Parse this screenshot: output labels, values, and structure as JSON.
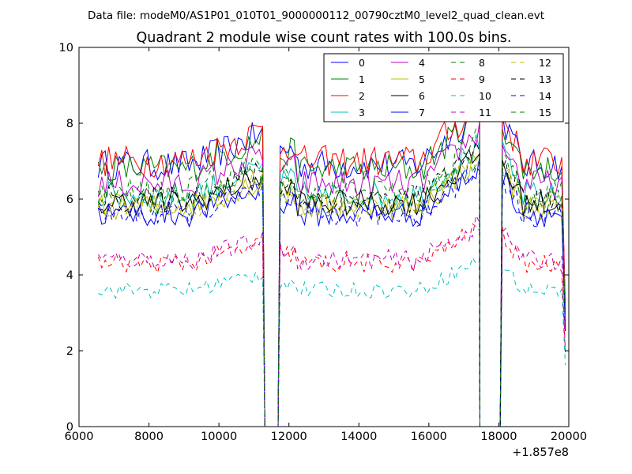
{
  "figure": {
    "suptitle": "Data file: modeM0/AS1P01_010T01_9000000112_00790cztM0_level2_quad_clean.evt"
  },
  "chart_data": {
    "type": "line",
    "title": "Quadrant 2 module wise count rates with 100.0s bins.",
    "xlabel": "",
    "ylabel": "",
    "x_offset_label": "+1.857e8",
    "xlim": [
      6000,
      20000
    ],
    "ylim": [
      0,
      10
    ],
    "x_ticks": [
      6000,
      8000,
      10000,
      12000,
      14000,
      16000,
      18000,
      20000
    ],
    "y_ticks": [
      0,
      2,
      4,
      6,
      8,
      10
    ],
    "grid": false,
    "legend_position": "top-right",
    "legend_columns": 4,
    "bin_seconds": 100,
    "segments": [
      {
        "x_start": 6550,
        "x_end": 11250
      },
      {
        "x_start": 11750,
        "x_end": 17400
      },
      {
        "x_start": 18100,
        "x_end": 19850
      }
    ],
    "series": [
      {
        "name": "0",
        "color": "#0000ff",
        "style": "solid",
        "level": 6.9
      },
      {
        "name": "1",
        "color": "#008000",
        "style": "solid",
        "level": 6.8
      },
      {
        "name": "2",
        "color": "#ff0000",
        "style": "solid",
        "level": 7.0
      },
      {
        "name": "3",
        "color": "#00bfbf",
        "style": "solid",
        "level": 6.1
      },
      {
        "name": "4",
        "color": "#bf00bf",
        "style": "solid",
        "level": 6.4
      },
      {
        "name": "5",
        "color": "#bfbf00",
        "style": "solid",
        "level": 5.8
      },
      {
        "name": "6",
        "color": "#000000",
        "style": "solid",
        "level": 5.9
      },
      {
        "name": "7",
        "color": "#0000ff",
        "style": "solid",
        "level": 5.6
      },
      {
        "name": "8",
        "color": "#008000",
        "style": "dashed",
        "level": 5.9
      },
      {
        "name": "9",
        "color": "#ff0000",
        "style": "dashed",
        "level": 4.3
      },
      {
        "name": "10",
        "color": "#00bfbf",
        "style": "dashed",
        "level": 3.6
      },
      {
        "name": "11",
        "color": "#bf00bf",
        "style": "dashed",
        "level": 4.4
      },
      {
        "name": "12",
        "color": "#bfbf00",
        "style": "dashed",
        "level": 5.8
      },
      {
        "name": "13",
        "color": "#000000",
        "style": "dashed",
        "level": 6.0
      },
      {
        "name": "14",
        "color": "#0000ff",
        "style": "dashed",
        "level": 5.6
      },
      {
        "name": "15",
        "color": "#008000",
        "style": "dashed",
        "level": 6.2
      }
    ]
  }
}
